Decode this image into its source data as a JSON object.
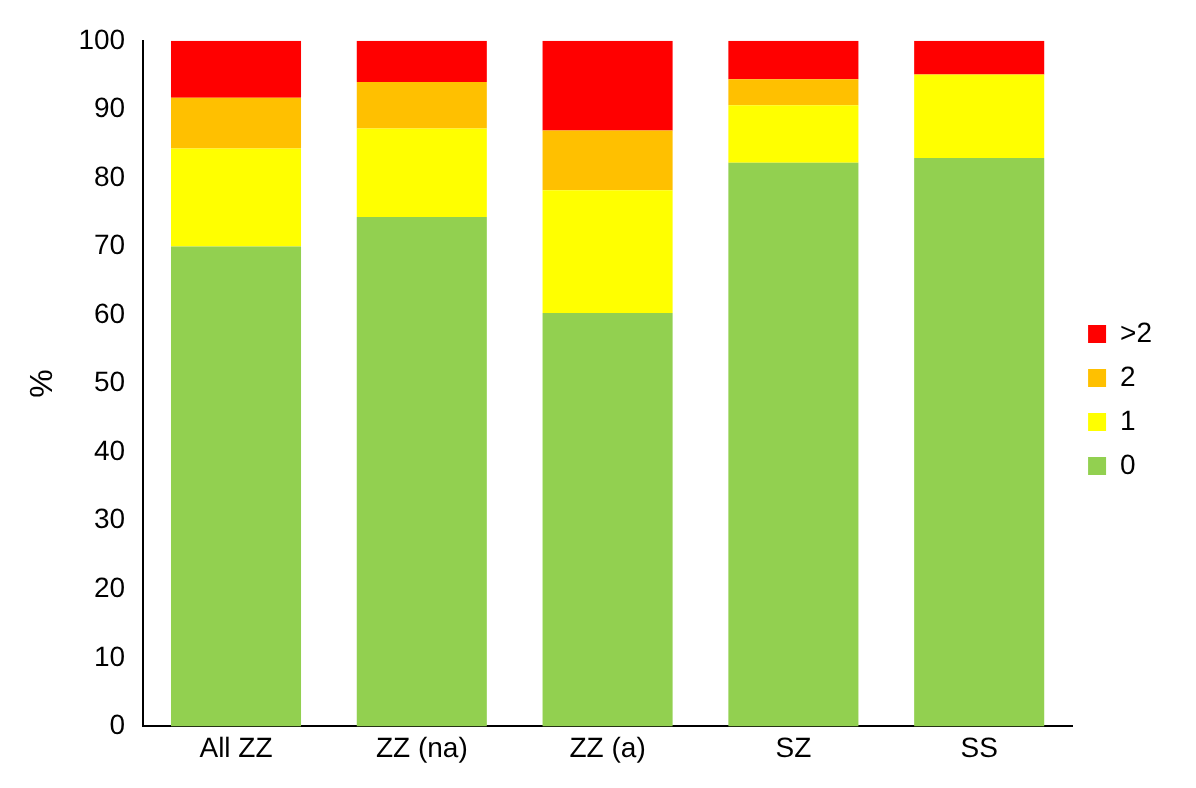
{
  "chart_data": {
    "type": "bar",
    "stacked": true,
    "ylabel": "%",
    "categories": [
      "All ZZ",
      "ZZ (na)",
      "ZZ (a)",
      "SZ",
      "SS"
    ],
    "series": [
      {
        "name": "0",
        "color": "#92d050",
        "values": [
          70,
          74.3,
          60.3,
          82.2,
          82.9
        ]
      },
      {
        "name": "1",
        "color": "#ffff00",
        "values": [
          14.3,
          12.9,
          17.9,
          8.4,
          12.2
        ]
      },
      {
        "name": "2",
        "color": "#ffc000",
        "values": [
          7.4,
          6.8,
          8.7,
          3.8,
          0
        ]
      },
      {
        "name": ">2",
        "color": "#ff0000",
        "values": [
          8.3,
          6,
          13.1,
          5.6,
          4.9
        ]
      }
    ],
    "ylim": [
      0,
      100
    ],
    "yticks": [
      0,
      10,
      20,
      30,
      40,
      50,
      60,
      70,
      80,
      90,
      100
    ],
    "grid": false,
    "legend": "right"
  }
}
